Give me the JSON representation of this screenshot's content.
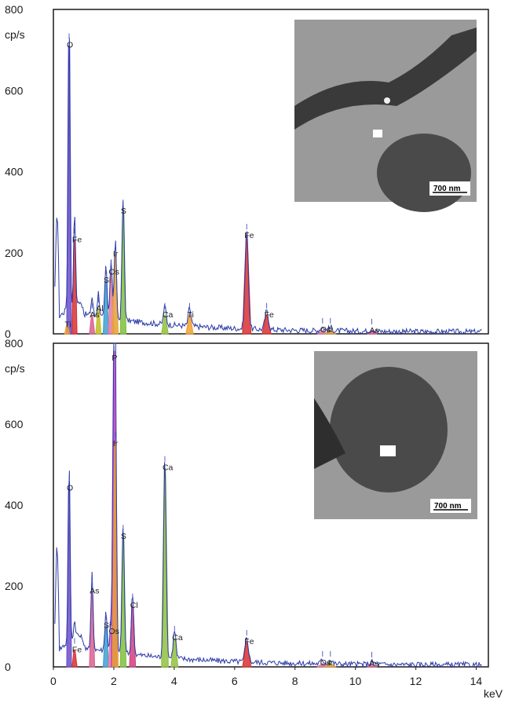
{
  "chart_data": [
    {
      "type": "line",
      "panel": "top",
      "y_unit": "cp/s",
      "xlim": [
        0,
        14.4
      ],
      "ylim": [
        0,
        800
      ],
      "y_ticks": [
        0,
        200,
        400,
        600,
        800
      ],
      "x_ticks": [
        0,
        2,
        4,
        6,
        8,
        10,
        12,
        14
      ],
      "grid": false,
      "inset_scale_label": "700 nm",
      "peaks": [
        {
          "element": "O",
          "x": 0.52,
          "y": 710,
          "color": "#6b4fc8"
        },
        {
          "element": "Fe",
          "x": 0.7,
          "y": 230,
          "color": "#d83030"
        },
        {
          "element": "Ti",
          "x": 0.45,
          "y": 20,
          "color": "#f0a030"
        },
        {
          "element": "As",
          "x": 1.28,
          "y": 45,
          "color": "#d86090"
        },
        {
          "element": "Al",
          "x": 1.49,
          "y": 60,
          "color": "#c0c020"
        },
        {
          "element": "Si",
          "x": 1.74,
          "y": 130,
          "color": "#40a0d0"
        },
        {
          "element": "Os",
          "x": 1.91,
          "y": 150,
          "color": "#e07aa0"
        },
        {
          "element": "Ir",
          "x": 2.05,
          "y": 195,
          "color": "#e8a030"
        },
        {
          "element": "S",
          "x": 2.31,
          "y": 300,
          "color": "#80c040"
        },
        {
          "element": "Ca",
          "x": 3.69,
          "y": 45,
          "color": "#90c040"
        },
        {
          "element": "Ti",
          "x": 4.51,
          "y": 45,
          "color": "#f0a030"
        },
        {
          "element": "Fe",
          "x": 6.4,
          "y": 240,
          "color": "#d83030"
        },
        {
          "element": "Fe",
          "x": 7.06,
          "y": 45,
          "color": "#d83030"
        },
        {
          "element": "Os",
          "x": 8.91,
          "y": 8,
          "color": "#e07aa0"
        },
        {
          "element": "Ir",
          "x": 9.17,
          "y": 8,
          "color": "#e8a030"
        },
        {
          "element": "As",
          "x": 10.54,
          "y": 6,
          "color": "#d86090"
        }
      ]
    },
    {
      "type": "line",
      "panel": "bottom",
      "y_unit": "cp/s",
      "x_unit": "keV",
      "xlim": [
        0,
        14.4
      ],
      "ylim": [
        0,
        800
      ],
      "y_ticks": [
        0,
        200,
        400,
        600,
        800
      ],
      "x_ticks": [
        0,
        2,
        4,
        6,
        8,
        10,
        12,
        14
      ],
      "grid": false,
      "inset_scale_label": "700 nm",
      "peaks": [
        {
          "element": "O",
          "x": 0.52,
          "y": 440,
          "color": "#6b4fc8"
        },
        {
          "element": "Fe",
          "x": 0.7,
          "y": 40,
          "color": "#d83030"
        },
        {
          "element": "As",
          "x": 1.28,
          "y": 185,
          "color": "#d86090"
        },
        {
          "element": "Si",
          "x": 1.74,
          "y": 100,
          "color": "#40a0d0"
        },
        {
          "element": "Os",
          "x": 1.91,
          "y": 85,
          "color": "#e07aa0"
        },
        {
          "element": "P",
          "x": 2.01,
          "y": 780,
          "color": "#c040c0"
        },
        {
          "element": "Ir",
          "x": 2.05,
          "y": 550,
          "color": "#e8a030"
        },
        {
          "element": "S",
          "x": 2.31,
          "y": 320,
          "color": "#80c040"
        },
        {
          "element": "Cl",
          "x": 2.62,
          "y": 150,
          "color": "#d04080"
        },
        {
          "element": "Ca",
          "x": 3.69,
          "y": 490,
          "color": "#90c040"
        },
        {
          "element": "Ca",
          "x": 4.01,
          "y": 70,
          "color": "#90c040"
        },
        {
          "element": "Fe",
          "x": 6.4,
          "y": 60,
          "color": "#d83030"
        },
        {
          "element": "Os",
          "x": 8.91,
          "y": 8,
          "color": "#e07aa0"
        },
        {
          "element": "Ir",
          "x": 9.17,
          "y": 8,
          "color": "#e8a030"
        },
        {
          "element": "As",
          "x": 10.54,
          "y": 6,
          "color": "#d86090"
        }
      ]
    }
  ],
  "colors": {
    "spectrum": "#2b3aa8",
    "frame": "#1a1a1a"
  }
}
